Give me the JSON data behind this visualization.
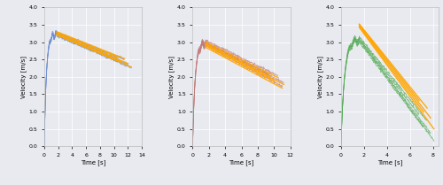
{
  "fig_width": 5.0,
  "fig_height": 2.09,
  "dpi": 100,
  "background_color": "#e8eaf0",
  "plots": [
    {
      "xlabel": "Time [s]",
      "ylabel": "Velocity [m/s]",
      "xlim": [
        0,
        14
      ],
      "ylim": [
        0.0,
        4.0
      ],
      "xticks": [
        0,
        2,
        4,
        6,
        8,
        10,
        12,
        14
      ],
      "yticks": [
        0.0,
        0.5,
        1.0,
        1.5,
        2.0,
        2.5,
        3.0,
        3.5,
        4.0
      ],
      "data_color": "#7090d0",
      "regression_color": "#FFA500",
      "num_trials": 5,
      "accel_end": 1.8,
      "coast_ends": [
        10.5,
        11.0,
        11.5,
        12.0,
        12.5
      ],
      "peak_vels": [
        3.25,
        3.2,
        3.28,
        3.22,
        3.18
      ],
      "reg_start_vels": [
        3.28,
        3.22,
        3.3,
        3.24,
        3.2
      ],
      "reg_slopes": [
        -0.082,
        -0.085,
        -0.08,
        -0.084,
        -0.086
      ]
    },
    {
      "xlabel": "Time [s]",
      "ylabel": "Velocity [m/s]",
      "xlim": [
        0,
        12
      ],
      "ylim": [
        0.0,
        4.0
      ],
      "xticks": [
        0,
        2,
        4,
        6,
        8,
        10,
        12
      ],
      "yticks": [
        0.0,
        0.5,
        1.0,
        1.5,
        2.0,
        2.5,
        3.0,
        3.5,
        4.0
      ],
      "data_color": "#c07878",
      "regression_color": "#FFA500",
      "num_trials": 5,
      "accel_end": 1.6,
      "coast_ends": [
        9.5,
        10.0,
        10.5,
        11.0,
        11.2
      ],
      "peak_vels": [
        3.0,
        2.95,
        3.05,
        2.9,
        2.98
      ],
      "reg_start_vels": [
        2.95,
        2.9,
        3.0,
        2.85,
        2.93
      ],
      "reg_slopes": [
        -0.118,
        -0.122,
        -0.115,
        -0.125,
        -0.12
      ]
    },
    {
      "xlabel": "Time [s]",
      "ylabel": "Velocity [m/s]",
      "xlim": [
        0,
        8.5
      ],
      "ylim": [
        0.0,
        4.0
      ],
      "xticks": [
        0,
        2,
        4,
        6,
        8
      ],
      "yticks": [
        0.0,
        0.5,
        1.0,
        1.5,
        2.0,
        2.5,
        3.0,
        3.5,
        4.0
      ],
      "data_color": "#55aa55",
      "regression_color": "#FFA500",
      "num_trials": 5,
      "accel_end": 1.6,
      "coast_ends": [
        6.8,
        7.2,
        7.5,
        7.8,
        8.1
      ],
      "peak_vels": [
        3.1,
        3.0,
        3.15,
        3.05,
        3.08
      ],
      "reg_start_vels": [
        3.5,
        3.45,
        3.52,
        3.48,
        3.42
      ],
      "reg_slopes": [
        -0.42,
        -0.44,
        -0.41,
        -0.43,
        -0.45
      ]
    }
  ]
}
